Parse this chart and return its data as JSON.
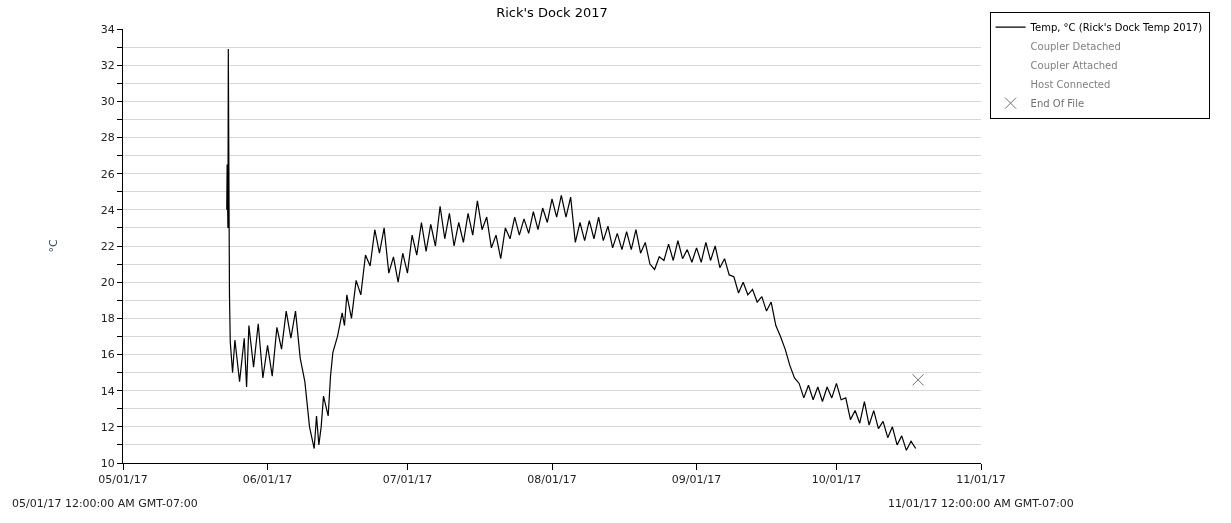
{
  "chart_data": {
    "type": "line",
    "title": "Rick's Dock 2017",
    "ylabel": "°C",
    "annotations": [
      "05/01/17 12:00:00 AM GMT-07:00",
      "11/01/17 12:00:00 AM GMT-07:00"
    ],
    "xlim": [
      "2017-05-01",
      "2017-11-01"
    ],
    "xticks": [
      {
        "value": "2017-05-01",
        "label": "05/01/17"
      },
      {
        "value": "2017-06-01",
        "label": "06/01/17"
      },
      {
        "value": "2017-07-01",
        "label": "07/01/17"
      },
      {
        "value": "2017-08-01",
        "label": "08/01/17"
      },
      {
        "value": "2017-09-01",
        "label": "09/01/17"
      },
      {
        "value": "2017-10-01",
        "label": "10/01/17"
      },
      {
        "value": "2017-11-01",
        "label": "11/01/17"
      }
    ],
    "ylim": [
      10,
      34
    ],
    "yticks": [
      10,
      {
        "value": 11,
        "label": null
      },
      12,
      {
        "value": 13,
        "label": null
      },
      14,
      {
        "value": 15,
        "label": null
      },
      16,
      {
        "value": 17,
        "label": null
      },
      18,
      {
        "value": 19,
        "label": null
      },
      20,
      {
        "value": 21,
        "label": null
      },
      22,
      {
        "value": 23,
        "label": null
      },
      24,
      {
        "value": 25,
        "label": null
      },
      26,
      {
        "value": 27,
        "label": null
      },
      28,
      {
        "value": 29,
        "label": null
      },
      30,
      {
        "value": 31,
        "label": null
      },
      32,
      {
        "value": 33,
        "label": null
      },
      34
    ],
    "grid": "y",
    "legend": "top right",
    "line_style": "solid",
    "series": [
      {
        "name": "Temp, °C (Rick's Dock Temp 2017)",
        "color": "#000000",
        "marker": "none",
        "x": [
          "2017-05-23T06:00",
          "2017-05-23T08:00",
          "2017-05-23T12:00",
          "2017-05-23T14:00",
          "2017-05-23T20:00",
          "2017-05-24T00:00",
          "2017-05-24T12:00",
          "2017-05-25",
          "2017-05-26",
          "2017-05-27",
          "2017-05-27T12:00",
          "2017-05-28",
          "2017-05-29",
          "2017-05-30",
          "2017-05-31",
          "2017-06-01",
          "2017-06-02",
          "2017-06-03",
          "2017-06-04",
          "2017-06-05",
          "2017-06-06",
          "2017-06-07",
          "2017-06-08",
          "2017-06-09",
          "2017-06-10",
          "2017-06-11",
          "2017-06-11T12:00",
          "2017-06-12",
          "2017-06-12T12:00",
          "2017-06-13",
          "2017-06-14",
          "2017-06-14T12:00",
          "2017-06-15",
          "2017-06-16",
          "2017-06-17",
          "2017-06-17T12:00",
          "2017-06-18",
          "2017-06-19",
          "2017-06-20",
          "2017-06-21",
          "2017-06-22",
          "2017-06-23",
          "2017-06-24",
          "2017-06-25",
          "2017-06-26",
          "2017-06-27",
          "2017-06-28",
          "2017-06-29",
          "2017-06-30",
          "2017-07-01",
          "2017-07-02",
          "2017-07-03",
          "2017-07-04",
          "2017-07-05",
          "2017-07-06",
          "2017-07-07",
          "2017-07-08",
          "2017-07-09",
          "2017-07-10",
          "2017-07-11",
          "2017-07-12",
          "2017-07-13",
          "2017-07-14",
          "2017-07-15",
          "2017-07-16",
          "2017-07-17",
          "2017-07-18",
          "2017-07-19",
          "2017-07-20",
          "2017-07-21",
          "2017-07-22",
          "2017-07-23",
          "2017-07-24",
          "2017-07-25",
          "2017-07-26",
          "2017-07-27",
          "2017-07-28",
          "2017-07-29",
          "2017-07-30",
          "2017-07-31",
          "2017-08-01",
          "2017-08-02",
          "2017-08-03",
          "2017-08-04",
          "2017-08-05",
          "2017-08-06",
          "2017-08-07",
          "2017-08-08",
          "2017-08-09",
          "2017-08-10",
          "2017-08-11",
          "2017-08-12",
          "2017-08-13",
          "2017-08-14",
          "2017-08-15",
          "2017-08-16",
          "2017-08-17",
          "2017-08-18",
          "2017-08-19",
          "2017-08-20",
          "2017-08-21",
          "2017-08-22",
          "2017-08-23",
          "2017-08-24",
          "2017-08-25",
          "2017-08-26",
          "2017-08-27",
          "2017-08-28",
          "2017-08-29",
          "2017-08-30",
          "2017-08-31",
          "2017-09-01",
          "2017-09-02",
          "2017-09-03",
          "2017-09-04",
          "2017-09-05",
          "2017-09-06",
          "2017-09-07",
          "2017-09-08",
          "2017-09-09",
          "2017-09-10",
          "2017-09-11",
          "2017-09-12",
          "2017-09-13",
          "2017-09-14",
          "2017-09-15",
          "2017-09-16",
          "2017-09-17",
          "2017-09-18",
          "2017-09-19",
          "2017-09-20",
          "2017-09-21",
          "2017-09-22",
          "2017-09-23",
          "2017-09-24",
          "2017-09-25",
          "2017-09-26",
          "2017-09-27",
          "2017-09-28",
          "2017-09-29",
          "2017-09-30",
          "2017-10-01",
          "2017-10-02",
          "2017-10-03",
          "2017-10-04",
          "2017-10-05",
          "2017-10-06",
          "2017-10-07",
          "2017-10-08",
          "2017-10-09",
          "2017-10-10",
          "2017-10-11",
          "2017-10-12",
          "2017-10-13",
          "2017-10-14",
          "2017-10-15",
          "2017-10-16",
          "2017-10-17",
          "2017-10-18"
        ],
        "values": [
          24.0,
          26.5,
          23.0,
          32.9,
          19.3,
          16.7,
          15.0,
          16.8,
          14.5,
          16.9,
          14.2,
          17.6,
          15.3,
          17.7,
          14.7,
          16.5,
          14.8,
          17.5,
          16.3,
          18.4,
          16.9,
          18.4,
          15.8,
          14.5,
          12.0,
          10.8,
          12.6,
          11.0,
          12.0,
          13.7,
          12.6,
          14.8,
          16.1,
          17.0,
          18.3,
          17.6,
          19.3,
          18.0,
          20.1,
          19.3,
          21.5,
          20.9,
          22.9,
          21.6,
          23.0,
          20.5,
          21.4,
          20.0,
          21.6,
          20.5,
          22.6,
          21.5,
          23.3,
          21.7,
          23.2,
          22.0,
          24.2,
          22.4,
          23.8,
          22.0,
          23.3,
          22.2,
          23.8,
          22.6,
          24.5,
          22.9,
          23.6,
          21.9,
          22.6,
          21.3,
          23.0,
          22.4,
          23.6,
          22.6,
          23.5,
          22.7,
          23.9,
          22.9,
          24.1,
          23.3,
          24.6,
          23.6,
          24.8,
          23.6,
          24.7,
          22.2,
          23.3,
          22.3,
          23.4,
          22.4,
          23.6,
          22.3,
          23.1,
          21.9,
          22.7,
          21.8,
          22.8,
          21.8,
          22.9,
          21.6,
          22.2,
          21.0,
          20.7,
          21.4,
          21.2,
          22.1,
          21.2,
          22.3,
          21.3,
          21.8,
          21.1,
          21.9,
          21.1,
          22.2,
          21.2,
          22.0,
          20.8,
          21.3,
          20.4,
          20.3,
          19.4,
          20.0,
          19.3,
          19.6,
          18.9,
          19.2,
          18.4,
          18.9,
          17.6,
          17.0,
          16.3,
          15.4,
          14.7,
          14.4,
          13.6,
          14.3,
          13.5,
          14.2,
          13.4,
          14.2,
          13.6,
          14.4,
          13.5,
          13.6,
          12.4,
          12.9,
          12.2,
          13.4,
          12.1,
          12.9,
          11.9,
          12.3,
          11.4,
          12.0,
          11.0,
          11.5,
          10.7,
          11.2,
          10.8
        ]
      },
      {
        "name": "Coupler Detached",
        "color": "#808080",
        "marker": "none"
      },
      {
        "name": "Coupler Attached",
        "color": "#808080",
        "marker": "none"
      },
      {
        "name": "Host Connected",
        "color": "#808080",
        "marker": "none"
      },
      {
        "name": "End Of File",
        "color": "#707070",
        "type": "scatter",
        "marker": "cross",
        "x": [
          "2017-10-18T12:00"
        ],
        "values": [
          14.6
        ]
      }
    ]
  }
}
